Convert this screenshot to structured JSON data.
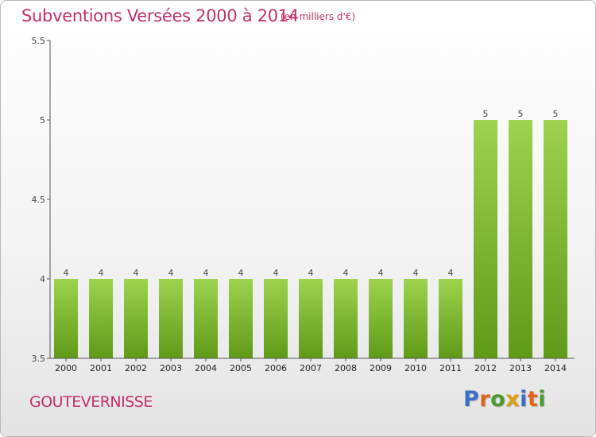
{
  "page": {
    "title": "Subventions Versées 2000 à 2014",
    "subtitle": "(en milliers d'€)",
    "commune": "GOUTEVERNISSE",
    "logo": {
      "text": "Proxiti",
      "letter_colors": [
        "#3a6fc4",
        "#e0641e",
        "#4a9a2e",
        "#d9a012",
        "#3a6fc4",
        "#e0641e",
        "#4a9a2e"
      ]
    }
  },
  "chart_data": {
    "type": "bar",
    "categories": [
      "2000",
      "2001",
      "2002",
      "2003",
      "2004",
      "2005",
      "2006",
      "2007",
      "2008",
      "2009",
      "2010",
      "2011",
      "2012",
      "2013",
      "2014"
    ],
    "values": [
      4,
      4,
      4,
      4,
      4,
      4,
      4,
      4,
      4,
      4,
      4,
      4,
      5,
      5,
      5
    ],
    "data_labels": [
      "4",
      "4",
      "4",
      "4",
      "4",
      "4",
      "4",
      "4",
      "4",
      "4",
      "4",
      "4",
      "5",
      "5",
      "5"
    ],
    "ylim": [
      3.5,
      5.5
    ],
    "yticks": [
      3.5,
      4,
      4.5,
      5,
      5.5
    ],
    "ytick_labels": [
      "3.5",
      "4",
      "4.5",
      "5",
      "5.5"
    ],
    "xlabel": "",
    "ylabel": "",
    "grid": false,
    "colors": {
      "bar_top": "#9dd34e",
      "bar_bottom": "#5f9a18",
      "axis": "#555555"
    }
  }
}
